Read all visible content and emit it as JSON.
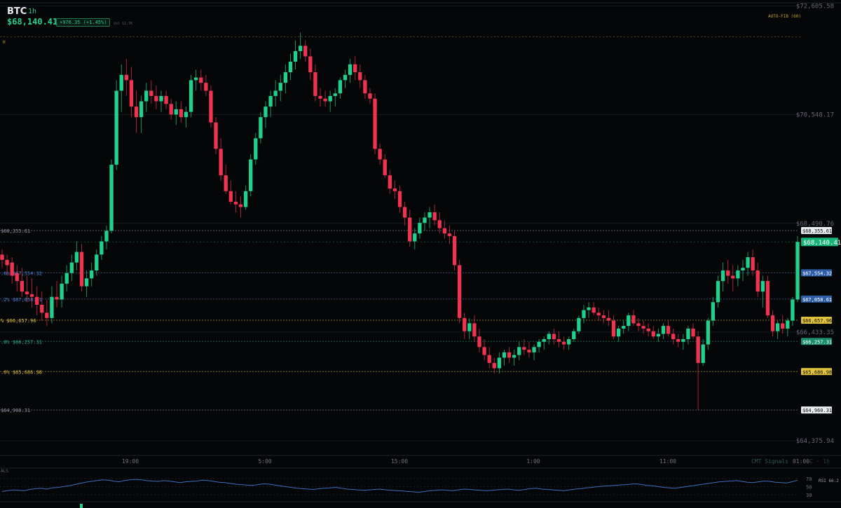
{
  "header": {
    "symbol": "BTC",
    "timeframe": "1h",
    "price": "$68,140.41",
    "change": "+976.35 (+1.45%)",
    "volume": "Vol 11.7K",
    "auto_fib_label": "AUTO-FIB (60)",
    "h_label": "H"
  },
  "colors": {
    "bull": "#1fd18c",
    "bear": "#f0334f",
    "background": "#050608",
    "fib_blue": "#4a86d9",
    "fib_yellow": "#e0c23c",
    "fib_teal": "#2ab38b",
    "rsi_line": "#3e6fbd"
  },
  "chart_data": {
    "type": "candlestick",
    "symbol": "BTC",
    "timeframe": "1h",
    "y_range": [
      64100,
      72650
    ],
    "y_ticks": [
      {
        "value": 72605.58,
        "label": "$72,605.58"
      },
      {
        "value": 70548.17,
        "label": "$70,548.17"
      },
      {
        "value": 68490.76,
        "label": "$68,490.76"
      },
      {
        "value": 66433.35,
        "label": "$66,433.35"
      },
      {
        "value": 64375.94,
        "label": "$64,375.94"
      }
    ],
    "x_ticks": [
      "19:00",
      "5:00",
      "15:00",
      "1:00",
      "11:00",
      "01:00"
    ],
    "fib_levels": [
      {
        "value": 68355.61,
        "left_label": "$68,355.61",
        "right_label": "$68,355.61",
        "color": "#8f98a6"
      },
      {
        "value": 67554.32,
        "left_label": ".6% $67,554.32",
        "right_label": "$67,554.32",
        "color": "#4a86d9"
      },
      {
        "value": 67058.61,
        "left_label": ".2% $67,058.61",
        "right_label": "$67,058.61",
        "color": "#4a86d9"
      },
      {
        "value": 66657.96,
        "left_label": "% $66,657.96",
        "right_label": "$66,657.96",
        "color": "#e0c23c"
      },
      {
        "value": 66257.31,
        "left_label": ".8% $66,257.31",
        "right_label": "$66,257.31",
        "color": "#2ab38b"
      },
      {
        "value": 65686.98,
        "left_label": ".6% $65,686.98",
        "right_label": "$65,686.98",
        "color": "#e0c23c"
      },
      {
        "value": 64960.31,
        "left_label": "$64,960.31",
        "right_label": "$64,960.31",
        "color": "#8f98a6"
      }
    ],
    "high_line": 72020,
    "last_price": {
      "value": 68140.41,
      "label": "$68,140.41"
    },
    "candles": [
      {
        "o": 67900,
        "h": 68000,
        "l": 67650,
        "c": 67800
      },
      {
        "o": 67800,
        "h": 67900,
        "l": 67500,
        "c": 67700
      },
      {
        "o": 67750,
        "h": 67850,
        "l": 67350,
        "c": 67500
      },
      {
        "o": 67550,
        "h": 67700,
        "l": 67200,
        "c": 67400
      },
      {
        "o": 67400,
        "h": 67650,
        "l": 67100,
        "c": 67200
      },
      {
        "o": 67200,
        "h": 67500,
        "l": 67000,
        "c": 67150
      },
      {
        "o": 67150,
        "h": 67450,
        "l": 66900,
        "c": 67100
      },
      {
        "o": 67100,
        "h": 67300,
        "l": 66750,
        "c": 66950
      },
      {
        "o": 66950,
        "h": 67200,
        "l": 66650,
        "c": 66800
      },
      {
        "o": 66800,
        "h": 67050,
        "l": 66550,
        "c": 66700
      },
      {
        "o": 66700,
        "h": 67300,
        "l": 66600,
        "c": 67100
      },
      {
        "o": 67100,
        "h": 67400,
        "l": 66900,
        "c": 67050
      },
      {
        "o": 67050,
        "h": 67500,
        "l": 66900,
        "c": 67350
      },
      {
        "o": 67350,
        "h": 67700,
        "l": 67200,
        "c": 67550
      },
      {
        "o": 67550,
        "h": 67900,
        "l": 67400,
        "c": 67750
      },
      {
        "o": 67750,
        "h": 68150,
        "l": 67600,
        "c": 67950
      },
      {
        "o": 67950,
        "h": 68100,
        "l": 67200,
        "c": 67300
      },
      {
        "o": 67300,
        "h": 67600,
        "l": 67100,
        "c": 67450
      },
      {
        "o": 67450,
        "h": 67750,
        "l": 67300,
        "c": 67600
      },
      {
        "o": 67600,
        "h": 68000,
        "l": 67500,
        "c": 67900
      },
      {
        "o": 67900,
        "h": 68250,
        "l": 67800,
        "c": 68150
      },
      {
        "o": 68150,
        "h": 68450,
        "l": 68000,
        "c": 68350
      },
      {
        "o": 68350,
        "h": 69700,
        "l": 68300,
        "c": 69600
      },
      {
        "o": 69600,
        "h": 71200,
        "l": 69500,
        "c": 71000
      },
      {
        "o": 71000,
        "h": 71500,
        "l": 70600,
        "c": 71300
      },
      {
        "o": 71300,
        "h": 71600,
        "l": 70900,
        "c": 71200
      },
      {
        "o": 71200,
        "h": 71450,
        "l": 70500,
        "c": 70700
      },
      {
        "o": 70700,
        "h": 71000,
        "l": 70200,
        "c": 70500
      },
      {
        "o": 70500,
        "h": 70900,
        "l": 70200,
        "c": 70800
      },
      {
        "o": 70800,
        "h": 71150,
        "l": 70600,
        "c": 71000
      },
      {
        "o": 71000,
        "h": 71200,
        "l": 70750,
        "c": 70900
      },
      {
        "o": 70900,
        "h": 71100,
        "l": 70650,
        "c": 70800
      },
      {
        "o": 70800,
        "h": 71000,
        "l": 70600,
        "c": 70900
      },
      {
        "o": 70900,
        "h": 71000,
        "l": 70650,
        "c": 70750
      },
      {
        "o": 70750,
        "h": 70850,
        "l": 70450,
        "c": 70550
      },
      {
        "o": 70550,
        "h": 70800,
        "l": 70350,
        "c": 70650
      },
      {
        "o": 70650,
        "h": 70800,
        "l": 70400,
        "c": 70500
      },
      {
        "o": 70500,
        "h": 70700,
        "l": 70300,
        "c": 70600
      },
      {
        "o": 70600,
        "h": 71300,
        "l": 70500,
        "c": 71200
      },
      {
        "o": 71200,
        "h": 71400,
        "l": 71000,
        "c": 71250
      },
      {
        "o": 71250,
        "h": 71400,
        "l": 71000,
        "c": 71150
      },
      {
        "o": 71150,
        "h": 71300,
        "l": 70900,
        "c": 71000
      },
      {
        "o": 71000,
        "h": 71100,
        "l": 70300,
        "c": 70400
      },
      {
        "o": 70400,
        "h": 70500,
        "l": 69800,
        "c": 69900
      },
      {
        "o": 69900,
        "h": 70100,
        "l": 69300,
        "c": 69400
      },
      {
        "o": 69400,
        "h": 69600,
        "l": 69050,
        "c": 69100
      },
      {
        "o": 69100,
        "h": 69300,
        "l": 68850,
        "c": 68900
      },
      {
        "o": 68900,
        "h": 69100,
        "l": 68700,
        "c": 68850
      },
      {
        "o": 68850,
        "h": 69000,
        "l": 68600,
        "c": 68800
      },
      {
        "o": 68800,
        "h": 69200,
        "l": 68750,
        "c": 69100
      },
      {
        "o": 69100,
        "h": 69800,
        "l": 69000,
        "c": 69700
      },
      {
        "o": 69700,
        "h": 70200,
        "l": 69600,
        "c": 70100
      },
      {
        "o": 70100,
        "h": 70600,
        "l": 70000,
        "c": 70500
      },
      {
        "o": 70500,
        "h": 70800,
        "l": 70300,
        "c": 70700
      },
      {
        "o": 70700,
        "h": 71000,
        "l": 70500,
        "c": 70900
      },
      {
        "o": 70900,
        "h": 71200,
        "l": 70700,
        "c": 71000
      },
      {
        "o": 71000,
        "h": 71300,
        "l": 70800,
        "c": 71150
      },
      {
        "o": 71150,
        "h": 71500,
        "l": 70950,
        "c": 71350
      },
      {
        "o": 71350,
        "h": 71700,
        "l": 71200,
        "c": 71550
      },
      {
        "o": 71550,
        "h": 71950,
        "l": 71400,
        "c": 71750
      },
      {
        "o": 71750,
        "h": 72100,
        "l": 71600,
        "c": 71850
      },
      {
        "o": 71850,
        "h": 71950,
        "l": 71550,
        "c": 71650
      },
      {
        "o": 71650,
        "h": 71800,
        "l": 71200,
        "c": 71350
      },
      {
        "o": 71350,
        "h": 71500,
        "l": 70800,
        "c": 70900
      },
      {
        "o": 70900,
        "h": 71050,
        "l": 70700,
        "c": 70850
      },
      {
        "o": 70850,
        "h": 71000,
        "l": 70700,
        "c": 70800
      },
      {
        "o": 70800,
        "h": 71000,
        "l": 70600,
        "c": 70900
      },
      {
        "o": 70900,
        "h": 71050,
        "l": 70700,
        "c": 70950
      },
      {
        "o": 70950,
        "h": 71250,
        "l": 70850,
        "c": 71200
      },
      {
        "o": 71200,
        "h": 71400,
        "l": 71050,
        "c": 71300
      },
      {
        "o": 71300,
        "h": 71600,
        "l": 71150,
        "c": 71500
      },
      {
        "o": 71500,
        "h": 71650,
        "l": 71200,
        "c": 71350
      },
      {
        "o": 71350,
        "h": 71500,
        "l": 71050,
        "c": 71200
      },
      {
        "o": 71200,
        "h": 71300,
        "l": 70850,
        "c": 70950
      },
      {
        "o": 70950,
        "h": 71050,
        "l": 70750,
        "c": 70850
      },
      {
        "o": 70850,
        "h": 70950,
        "l": 69800,
        "c": 69900
      },
      {
        "o": 69900,
        "h": 70000,
        "l": 69600,
        "c": 69700
      },
      {
        "o": 69700,
        "h": 69800,
        "l": 69350,
        "c": 69400
      },
      {
        "o": 69400,
        "h": 69500,
        "l": 69050,
        "c": 69150
      },
      {
        "o": 69150,
        "h": 69300,
        "l": 68950,
        "c": 69100
      },
      {
        "o": 69100,
        "h": 69200,
        "l": 68700,
        "c": 68800
      },
      {
        "o": 68800,
        "h": 68900,
        "l": 68450,
        "c": 68600
      },
      {
        "o": 68600,
        "h": 68750,
        "l": 68050,
        "c": 68150
      },
      {
        "o": 68150,
        "h": 68400,
        "l": 68000,
        "c": 68300
      },
      {
        "o": 68300,
        "h": 68600,
        "l": 68200,
        "c": 68500
      },
      {
        "o": 68500,
        "h": 68700,
        "l": 68350,
        "c": 68600
      },
      {
        "o": 68600,
        "h": 68800,
        "l": 68400,
        "c": 68700
      },
      {
        "o": 68700,
        "h": 68850,
        "l": 68450,
        "c": 68550
      },
      {
        "o": 68550,
        "h": 68700,
        "l": 68300,
        "c": 68400
      },
      {
        "o": 68400,
        "h": 68550,
        "l": 68200,
        "c": 68300
      },
      {
        "o": 68300,
        "h": 68450,
        "l": 68100,
        "c": 68250
      },
      {
        "o": 68250,
        "h": 68350,
        "l": 67600,
        "c": 67700
      },
      {
        "o": 67700,
        "h": 67800,
        "l": 66600,
        "c": 66700
      },
      {
        "o": 66700,
        "h": 66800,
        "l": 66300,
        "c": 66450
      },
      {
        "o": 66450,
        "h": 66700,
        "l": 66300,
        "c": 66600
      },
      {
        "o": 66600,
        "h": 66750,
        "l": 66250,
        "c": 66350
      },
      {
        "o": 66350,
        "h": 66500,
        "l": 66050,
        "c": 66150
      },
      {
        "o": 66150,
        "h": 66300,
        "l": 65900,
        "c": 66000
      },
      {
        "o": 66000,
        "h": 66150,
        "l": 65750,
        "c": 65850
      },
      {
        "o": 65850,
        "h": 65950,
        "l": 65650,
        "c": 65750
      },
      {
        "o": 65750,
        "h": 66050,
        "l": 65650,
        "c": 65950
      },
      {
        "o": 65950,
        "h": 66100,
        "l": 65800,
        "c": 66050
      },
      {
        "o": 66050,
        "h": 66150,
        "l": 65850,
        "c": 65950
      },
      {
        "o": 65950,
        "h": 66100,
        "l": 65800,
        "c": 66000
      },
      {
        "o": 66000,
        "h": 66250,
        "l": 65900,
        "c": 66150
      },
      {
        "o": 66150,
        "h": 66300,
        "l": 66000,
        "c": 66100
      },
      {
        "o": 66100,
        "h": 66250,
        "l": 65950,
        "c": 66050
      },
      {
        "o": 66050,
        "h": 66200,
        "l": 65900,
        "c": 66150
      },
      {
        "o": 66150,
        "h": 66300,
        "l": 66050,
        "c": 66250
      },
      {
        "o": 66250,
        "h": 66350,
        "l": 66100,
        "c": 66300
      },
      {
        "o": 66300,
        "h": 66450,
        "l": 66200,
        "c": 66400
      },
      {
        "o": 66400,
        "h": 66500,
        "l": 66200,
        "c": 66300
      },
      {
        "o": 66300,
        "h": 66450,
        "l": 66150,
        "c": 66250
      },
      {
        "o": 66250,
        "h": 66350,
        "l": 66100,
        "c": 66200
      },
      {
        "o": 66200,
        "h": 66350,
        "l": 66100,
        "c": 66300
      },
      {
        "o": 66300,
        "h": 66500,
        "l": 66250,
        "c": 66450
      },
      {
        "o": 66450,
        "h": 66750,
        "l": 66400,
        "c": 66700
      },
      {
        "o": 66700,
        "h": 66950,
        "l": 66600,
        "c": 66850
      },
      {
        "o": 66850,
        "h": 67000,
        "l": 66700,
        "c": 66900
      },
      {
        "o": 66900,
        "h": 67000,
        "l": 66750,
        "c": 66800
      },
      {
        "o": 66800,
        "h": 66900,
        "l": 66650,
        "c": 66750
      },
      {
        "o": 66750,
        "h": 66850,
        "l": 66600,
        "c": 66700
      },
      {
        "o": 66700,
        "h": 66850,
        "l": 66550,
        "c": 66650
      },
      {
        "o": 66650,
        "h": 66750,
        "l": 66300,
        "c": 66350
      },
      {
        "o": 66350,
        "h": 66550,
        "l": 66250,
        "c": 66500
      },
      {
        "o": 66500,
        "h": 66650,
        "l": 66400,
        "c": 66550
      },
      {
        "o": 66550,
        "h": 66800,
        "l": 66450,
        "c": 66750
      },
      {
        "o": 66750,
        "h": 66850,
        "l": 66550,
        "c": 66600
      },
      {
        "o": 66600,
        "h": 66700,
        "l": 66450,
        "c": 66550
      },
      {
        "o": 66550,
        "h": 66650,
        "l": 66400,
        "c": 66500
      },
      {
        "o": 66500,
        "h": 66600,
        "l": 66350,
        "c": 66450
      },
      {
        "o": 66450,
        "h": 66550,
        "l": 66300,
        "c": 66350
      },
      {
        "o": 66350,
        "h": 66500,
        "l": 66250,
        "c": 66400
      },
      {
        "o": 66400,
        "h": 66600,
        "l": 66300,
        "c": 66550
      },
      {
        "o": 66550,
        "h": 66650,
        "l": 66350,
        "c": 66400
      },
      {
        "o": 66400,
        "h": 66500,
        "l": 66200,
        "c": 66300
      },
      {
        "o": 66300,
        "h": 66400,
        "l": 66150,
        "c": 66250
      },
      {
        "o": 66250,
        "h": 66400,
        "l": 66100,
        "c": 66300
      },
      {
        "o": 66300,
        "h": 66550,
        "l": 66200,
        "c": 66500
      },
      {
        "o": 66500,
        "h": 66600,
        "l": 66300,
        "c": 66350
      },
      {
        "o": 66350,
        "h": 66450,
        "l": 64960,
        "c": 65850
      },
      {
        "o": 65850,
        "h": 66300,
        "l": 65800,
        "c": 66200
      },
      {
        "o": 66200,
        "h": 66700,
        "l": 66100,
        "c": 66650
      },
      {
        "o": 66650,
        "h": 67100,
        "l": 66550,
        "c": 67000
      },
      {
        "o": 67000,
        "h": 67500,
        "l": 66900,
        "c": 67400
      },
      {
        "o": 67400,
        "h": 67750,
        "l": 67200,
        "c": 67600
      },
      {
        "o": 67600,
        "h": 67800,
        "l": 67350,
        "c": 67500
      },
      {
        "o": 67500,
        "h": 67700,
        "l": 67200,
        "c": 67450
      },
      {
        "o": 67450,
        "h": 67700,
        "l": 67300,
        "c": 67600
      },
      {
        "o": 67600,
        "h": 67800,
        "l": 67400,
        "c": 67650
      },
      {
        "o": 67650,
        "h": 67950,
        "l": 67500,
        "c": 67850
      },
      {
        "o": 67850,
        "h": 68000,
        "l": 67500,
        "c": 67600
      },
      {
        "o": 67600,
        "h": 67750,
        "l": 67100,
        "c": 67200
      },
      {
        "o": 67200,
        "h": 67500,
        "l": 66900,
        "c": 67400
      },
      {
        "o": 67400,
        "h": 67500,
        "l": 66700,
        "c": 66750
      },
      {
        "o": 66750,
        "h": 66850,
        "l": 66350,
        "c": 66450
      },
      {
        "o": 66450,
        "h": 66650,
        "l": 66300,
        "c": 66600
      },
      {
        "o": 66600,
        "h": 66750,
        "l": 66400,
        "c": 66500
      },
      {
        "o": 66500,
        "h": 66700,
        "l": 66350,
        "c": 66650
      },
      {
        "o": 66650,
        "h": 67100,
        "l": 66550,
        "c": 67050
      },
      {
        "o": 67050,
        "h": 68250,
        "l": 67000,
        "c": 68140
      }
    ],
    "indicator": {
      "name": "RSI",
      "label": "RSI 66.2",
      "value": 66.2,
      "levels": [
        70,
        50,
        30
      ],
      "panel_label": "ALS",
      "values": [
        38,
        40,
        42,
        41,
        40,
        43,
        45,
        46,
        44,
        47,
        48,
        50,
        52,
        55,
        58,
        61,
        63,
        65,
        67,
        66,
        64,
        62,
        65,
        67,
        68,
        67,
        65,
        64,
        63,
        65,
        64,
        62,
        60,
        62,
        63,
        64,
        66,
        65,
        63,
        61,
        60,
        58,
        56,
        55,
        54,
        53,
        55,
        57,
        56,
        54,
        52,
        50,
        48,
        46,
        45,
        44,
        43,
        45,
        46,
        47,
        48,
        46,
        44,
        43,
        42,
        41,
        42,
        43,
        44,
        42,
        41,
        40,
        39,
        38,
        37,
        36,
        38,
        40,
        41,
        42,
        41,
        40,
        42,
        44,
        43,
        42,
        41,
        40,
        41,
        42,
        43,
        44,
        42,
        41,
        43,
        45,
        46,
        44,
        43,
        42,
        41,
        40,
        42,
        44,
        45,
        47,
        48,
        50,
        51,
        52,
        53,
        54,
        55,
        56,
        57,
        55,
        53,
        52,
        50,
        48,
        47,
        46,
        48,
        50,
        52,
        54,
        56,
        58,
        60,
        62,
        63,
        64,
        65,
        63,
        61,
        60,
        62,
        64,
        63,
        61,
        60,
        59,
        62,
        66
      ]
    },
    "watermark": "CMT Signals",
    "watermark_suffix": "C · 1h"
  }
}
